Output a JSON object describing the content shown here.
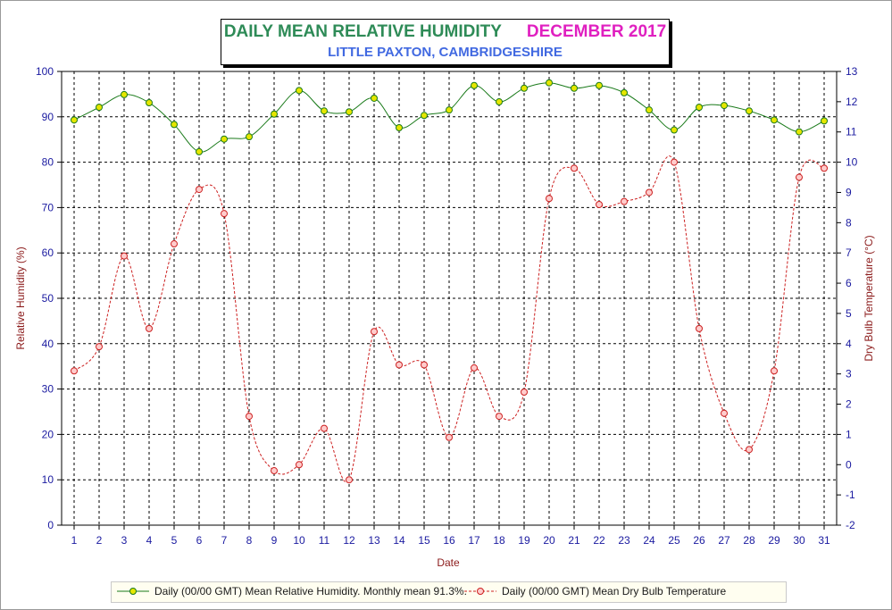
{
  "chart_data": {
    "type": "line",
    "title": "DAILY MEAN RELATIVE HUMIDITY",
    "title_period": "DECEMBER 2017",
    "subtitle": "LITTLE PAXTON, CAMBRIDGESHIRE",
    "xlabel": "Date",
    "ylabel_left": "Relative Humidity (%)",
    "ylabel_right": "Dry Bulb Temperature (°C)",
    "x": [
      1,
      2,
      3,
      4,
      5,
      6,
      7,
      8,
      9,
      10,
      11,
      12,
      13,
      14,
      15,
      16,
      17,
      18,
      19,
      20,
      21,
      22,
      23,
      24,
      25,
      26,
      27,
      28,
      29,
      30,
      31
    ],
    "x_tick_labels": [
      "1",
      "2",
      "3",
      "4",
      "5",
      "6",
      "7",
      "8",
      "9",
      "10",
      "11",
      "12",
      "13",
      "14",
      "15",
      "16",
      "17",
      "18",
      "19",
      "20",
      "21",
      "22",
      "23",
      "24",
      "25",
      "26",
      "27",
      "28",
      "29",
      "30",
      "31"
    ],
    "ylim_left": [
      0,
      100
    ],
    "y_left_ticks": [
      "0",
      "10",
      "20",
      "30",
      "40",
      "50",
      "60",
      "70",
      "80",
      "90",
      "100"
    ],
    "ylim_right": [
      -2,
      13
    ],
    "y_right_ticks": [
      "-2",
      "-1",
      "0",
      "1",
      "2",
      "3",
      "4",
      "5",
      "6",
      "7",
      "8",
      "9",
      "10",
      "11",
      "12",
      "13"
    ],
    "grid": true,
    "legend_position": "bottom",
    "series": [
      {
        "name": "Daily (00/00 GMT) Mean Relative Humidity. Monthly mean 91.3%.",
        "axis": "left",
        "color": "#1a7a1a",
        "marker_color": "#e6e600",
        "values": [
          89.3,
          92.1,
          94.9,
          93.1,
          88.3,
          82.3,
          85.1,
          85.6,
          90.6,
          95.8,
          91.3,
          91.1,
          94.1,
          87.6,
          90.3,
          91.5,
          96.9,
          93.3,
          96.3,
          97.5,
          96.3,
          96.9,
          95.3,
          91.5,
          87.1,
          92.1,
          92.5,
          91.3,
          89.3,
          86.7,
          89.1
        ]
      },
      {
        "name": "Daily (00/00 GMT) Mean Dry Bulb Temperature",
        "axis": "right",
        "color": "#cc2020",
        "marker_color": "#ffcccc",
        "values": [
          3.1,
          3.9,
          6.9,
          4.5,
          7.3,
          9.1,
          8.3,
          1.6,
          -0.2,
          0.0,
          1.2,
          -0.5,
          4.4,
          3.3,
          3.3,
          0.9,
          3.2,
          1.6,
          2.4,
          8.8,
          9.8,
          8.6,
          8.7,
          9.0,
          10.0,
          4.5,
          1.7,
          0.5,
          3.1,
          9.5,
          9.8
        ]
      }
    ]
  }
}
